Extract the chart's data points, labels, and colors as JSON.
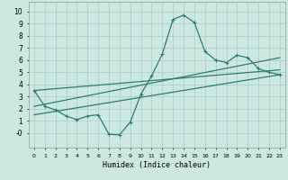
{
  "xlabel": "Humidex (Indice chaleur)",
  "bg_color": "#cce8e0",
  "grid_color": "#aad4cc",
  "line_color": "#2e7d70",
  "xlim": [
    -0.5,
    23.5
  ],
  "ylim": [
    -1.2,
    10.8
  ],
  "xticks": [
    0,
    1,
    2,
    3,
    4,
    5,
    6,
    7,
    8,
    9,
    10,
    11,
    12,
    13,
    14,
    15,
    16,
    17,
    18,
    19,
    20,
    21,
    22,
    23
  ],
  "yticks": [
    0,
    1,
    2,
    3,
    4,
    5,
    6,
    7,
    8,
    9,
    10
  ],
  "ytick_labels": [
    "-0",
    "1",
    "2",
    "3",
    "4",
    "5",
    "6",
    "7",
    "8",
    "9",
    "10"
  ],
  "line1_x": [
    0,
    1,
    2,
    3,
    4,
    5,
    6,
    7,
    8,
    9,
    10,
    11,
    12,
    13,
    14,
    15,
    16,
    17,
    18,
    19,
    20,
    21,
    22,
    23
  ],
  "line1_y": [
    3.5,
    2.2,
    1.9,
    1.4,
    1.1,
    1.4,
    1.5,
    -0.1,
    -0.15,
    0.9,
    3.2,
    4.7,
    6.5,
    9.35,
    9.7,
    9.1,
    6.7,
    6.0,
    5.8,
    6.4,
    6.2,
    5.3,
    5.0,
    4.8
  ],
  "straight_lines": [
    {
      "x": [
        0,
        23
      ],
      "y": [
        3.5,
        5.2
      ]
    },
    {
      "x": [
        0,
        23
      ],
      "y": [
        2.2,
        6.2
      ]
    },
    {
      "x": [
        0,
        23
      ],
      "y": [
        1.5,
        4.8
      ]
    }
  ]
}
